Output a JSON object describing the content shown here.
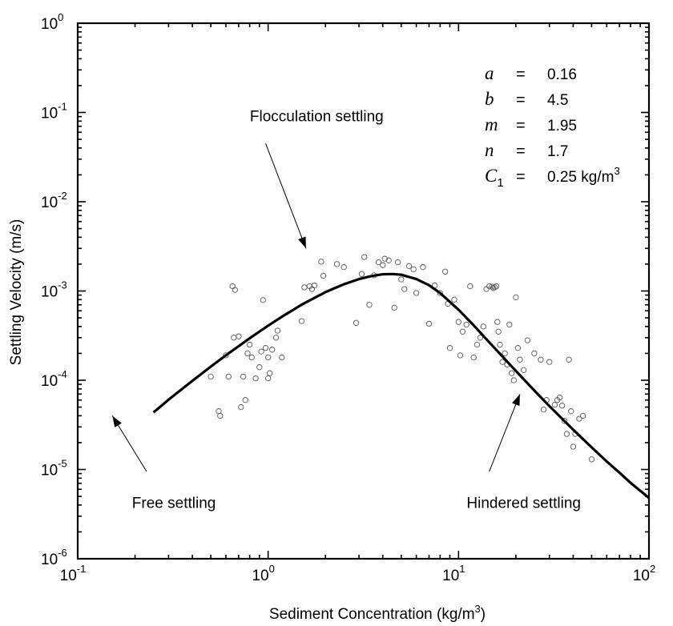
{
  "chart_data": {
    "type": "scatter",
    "title": "",
    "xlabel": "Sediment Concentration (kg/m",
    "xlabel_sup": "3",
    "xlabel_end": ")",
    "ylabel": "Settling Velocity (m/s)",
    "x_scale": "log",
    "y_scale": "log",
    "xlim": [
      0.1,
      100
    ],
    "ylim": [
      1e-06,
      1
    ],
    "grid": false,
    "x_ticks": [
      {
        "base": "10",
        "exp": "-1",
        "value": 0.1
      },
      {
        "base": "10",
        "exp": "0",
        "value": 1
      },
      {
        "base": "10",
        "exp": "1",
        "value": 10
      },
      {
        "base": "10",
        "exp": "2",
        "value": 100
      }
    ],
    "y_ticks": [
      {
        "base": "10",
        "exp": "-6",
        "value": 1e-06
      },
      {
        "base": "10",
        "exp": "-5",
        "value": 1e-05
      },
      {
        "base": "10",
        "exp": "-4",
        "value": 0.0001
      },
      {
        "base": "10",
        "exp": "-3",
        "value": 0.001
      },
      {
        "base": "10",
        "exp": "-2",
        "value": 0.01
      },
      {
        "base": "10",
        "exp": "-1",
        "value": 0.1
      },
      {
        "base": "10",
        "exp": "0",
        "value": 1
      }
    ],
    "parameters": [
      {
        "symbol": "a",
        "sub": "",
        "eq": "=",
        "value": "0.16",
        "value_sup": ""
      },
      {
        "symbol": "b",
        "sub": "",
        "eq": "=",
        "value": "4.5",
        "value_sup": ""
      },
      {
        "symbol": "m",
        "sub": "",
        "eq": "=",
        "value": "1.95",
        "value_sup": ""
      },
      {
        "symbol": "n",
        "sub": "",
        "eq": "=",
        "value": "1.7",
        "value_sup": ""
      },
      {
        "symbol": "C",
        "sub": "1",
        "eq": "=",
        "value": "0.25 kg/m",
        "value_sup": "3"
      }
    ],
    "annotations": [
      {
        "text": "Flocculation settling",
        "label_x": 1.8,
        "label_y": 0.08,
        "arrow_from": [
          0.97,
          0.045
        ],
        "arrow_to": [
          1.58,
          0.003
        ]
      },
      {
        "text": "Free settling",
        "label_x": 0.32,
        "label_y": 3.7e-06,
        "arrow_from": [
          0.23,
          9.5e-06
        ],
        "arrow_to": [
          0.152,
          4e-05
        ]
      },
      {
        "text": "Hindered settling",
        "label_x": 22,
        "label_y": 3.7e-06,
        "arrow_from": [
          14.5,
          9.5e-06
        ],
        "arrow_to": [
          21,
          7e-05
        ]
      }
    ],
    "series": [
      {
        "style": "line",
        "color": "#000000",
        "points": [
          [
            0.25,
            4.36e-05
          ],
          [
            0.3,
            6.05e-05
          ],
          [
            0.4,
            9.86e-05
          ],
          [
            0.5,
            0.000142
          ],
          [
            0.6,
            0.00019
          ],
          [
            0.7,
            0.000241
          ],
          [
            0.8,
            0.000295
          ],
          [
            1.0,
            0.000409
          ],
          [
            1.2,
            0.000526
          ],
          [
            1.5,
            0.000702
          ],
          [
            2.0,
            0.000972
          ],
          [
            2.5,
            0.00119
          ],
          [
            3.0,
            0.00136
          ],
          [
            3.5,
            0.00147
          ],
          [
            4.0,
            0.00154
          ],
          [
            4.5,
            0.00155
          ],
          [
            5.0,
            0.00152
          ],
          [
            6.0,
            0.00136
          ],
          [
            7.0,
            0.00116
          ],
          [
            8.0,
            0.000948
          ],
          [
            10.0,
            0.000618
          ],
          [
            12.0,
            0.000412
          ],
          [
            15.0,
            0.000246
          ],
          [
            20.0,
            0.000127
          ],
          [
            25.0,
            7.68e-05
          ],
          [
            30.0,
            5.13e-05
          ],
          [
            40.0,
            2.79e-05
          ],
          [
            50.0,
            1.77e-05
          ],
          [
            60.0,
            1.23e-05
          ],
          [
            70.0,
            9.2e-06
          ],
          [
            80.0,
            7.1e-06
          ],
          [
            100.0,
            4.8e-06
          ]
        ]
      },
      {
        "style": "scatter",
        "marker": "circle-open",
        "points": [
          [
            0.5,
            0.00011
          ],
          [
            0.55,
            4.5e-05
          ],
          [
            0.56,
            4e-05
          ],
          [
            0.6,
            0.00019
          ],
          [
            0.62,
            0.00011
          ],
          [
            0.65,
            0.00113
          ],
          [
            0.66,
            0.0003
          ],
          [
            0.67,
            0.00103
          ],
          [
            0.7,
            0.00031
          ],
          [
            0.72,
            5e-05
          ],
          [
            0.74,
            0.00011
          ],
          [
            0.76,
            6e-05
          ],
          [
            0.78,
            0.0002
          ],
          [
            0.8,
            0.00025
          ],
          [
            0.82,
            0.00018
          ],
          [
            0.86,
            0.000105
          ],
          [
            0.9,
            0.00014
          ],
          [
            0.92,
            0.00021
          ],
          [
            0.94,
            0.00079
          ],
          [
            0.97,
            0.00023
          ],
          [
            1.0,
            0.000105
          ],
          [
            1.0,
            0.00018
          ],
          [
            1.02,
            0.00012
          ],
          [
            1.05,
            0.00022
          ],
          [
            1.1,
            0.0003
          ],
          [
            1.12,
            0.00036
          ],
          [
            1.18,
            0.00018
          ],
          [
            1.5,
            0.00046
          ],
          [
            1.55,
            0.0011
          ],
          [
            1.65,
            0.00113
          ],
          [
            1.7,
            0.00105
          ],
          [
            1.75,
            0.00115
          ],
          [
            1.9,
            0.00213
          ],
          [
            1.95,
            0.00148
          ],
          [
            2.3,
            0.002
          ],
          [
            2.5,
            0.00185
          ],
          [
            2.9,
            0.00044
          ],
          [
            3.1,
            0.00155
          ],
          [
            3.2,
            0.0024
          ],
          [
            3.4,
            0.0007
          ],
          [
            3.6,
            0.0015
          ],
          [
            3.8,
            0.0021
          ],
          [
            4.0,
            0.00195
          ],
          [
            4.1,
            0.0023
          ],
          [
            4.3,
            0.0022
          ],
          [
            4.6,
            0.00065
          ],
          [
            4.8,
            0.0021
          ],
          [
            5.0,
            0.00135
          ],
          [
            5.2,
            0.00105
          ],
          [
            5.5,
            0.0019
          ],
          [
            5.8,
            0.00175
          ],
          [
            6.0,
            0.00095
          ],
          [
            6.5,
            0.00185
          ],
          [
            7.0,
            0.00043
          ],
          [
            7.5,
            0.00115
          ],
          [
            8.0,
            0.00095
          ],
          [
            8.5,
            0.00165
          ],
          [
            8.8,
            0.00072
          ],
          [
            9.0,
            0.00023
          ],
          [
            9.5,
            0.0008
          ],
          [
            10.0,
            0.00045
          ],
          [
            10.2,
            0.00019
          ],
          [
            10.5,
            0.00035
          ],
          [
            11.0,
            0.00042
          ],
          [
            11.5,
            0.00113
          ],
          [
            12.0,
            0.00018
          ],
          [
            12.5,
            0.00025
          ],
          [
            13.0,
            0.0003
          ],
          [
            13.5,
            0.0004
          ],
          [
            14.0,
            0.00105
          ],
          [
            14.5,
            0.00113
          ],
          [
            15.0,
            0.00112
          ],
          [
            15.2,
            0.00108
          ],
          [
            15.5,
            0.0011
          ],
          [
            15.8,
            0.00113
          ],
          [
            16.0,
            0.00045
          ],
          [
            16.2,
            0.00035
          ],
          [
            16.5,
            0.00025
          ],
          [
            17.0,
            0.00016
          ],
          [
            17.5,
            0.0002
          ],
          [
            18.0,
            0.00015
          ],
          [
            18.5,
            0.00042
          ],
          [
            19.0,
            0.00012
          ],
          [
            19.5,
            0.0001
          ],
          [
            20.0,
            0.00085
          ],
          [
            20.5,
            0.00023
          ],
          [
            21.0,
            0.00017
          ],
          [
            22.0,
            0.00013
          ],
          [
            23.0,
            0.00028
          ],
          [
            25.0,
            0.0002
          ],
          [
            27.0,
            0.00017
          ],
          [
            28.0,
            4.7e-05
          ],
          [
            29.0,
            6e-05
          ],
          [
            30.0,
            0.00016
          ],
          [
            32.0,
            5.3e-05
          ],
          [
            33.0,
            6e-05
          ],
          [
            34.0,
            6.4e-05
          ],
          [
            35.0,
            5.2e-05
          ],
          [
            36.0,
            3.5e-05
          ],
          [
            37.0,
            2.5e-05
          ],
          [
            38.0,
            0.00017
          ],
          [
            39.0,
            4.5e-05
          ],
          [
            40.0,
            1.8e-05
          ],
          [
            41.0,
            2.5e-05
          ],
          [
            43.0,
            3.7e-05
          ],
          [
            45.0,
            4e-05
          ],
          [
            50.0,
            1.3e-05
          ]
        ]
      }
    ]
  }
}
